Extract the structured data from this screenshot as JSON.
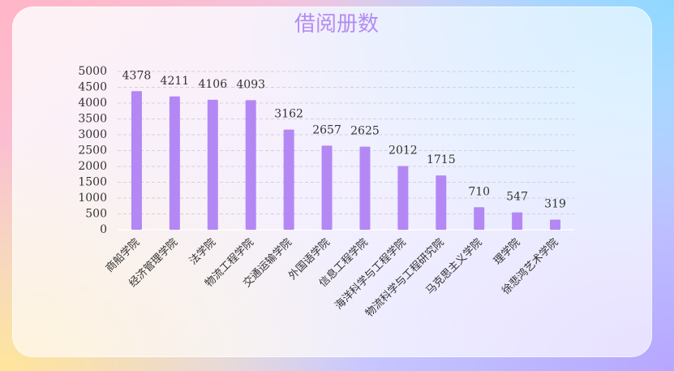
{
  "chart_data": {
    "type": "bar",
    "title": "借阅册数",
    "xlabel": "",
    "ylabel": "",
    "ylim": [
      0,
      5000
    ],
    "yticks": [
      0,
      500,
      1000,
      1500,
      2000,
      2500,
      3000,
      3500,
      4000,
      4500,
      5000
    ],
    "grid": true,
    "categories": [
      "商船学院",
      "经济管理学院",
      "法学院",
      "物流工程学院",
      "交通运输学院",
      "外国语学院",
      "信息工程学院",
      "海洋科学与工程学院",
      "物流科学与工程研究院",
      "马克思主义学院",
      "理学院",
      "徐悲鸿艺术学院"
    ],
    "values": [
      4378,
      4211,
      4106,
      4093,
      3162,
      2657,
      2625,
      2012,
      1715,
      710,
      547,
      319
    ],
    "data_labels": true,
    "bar_color": "#b388f5",
    "title_color": "#b48cf2"
  }
}
